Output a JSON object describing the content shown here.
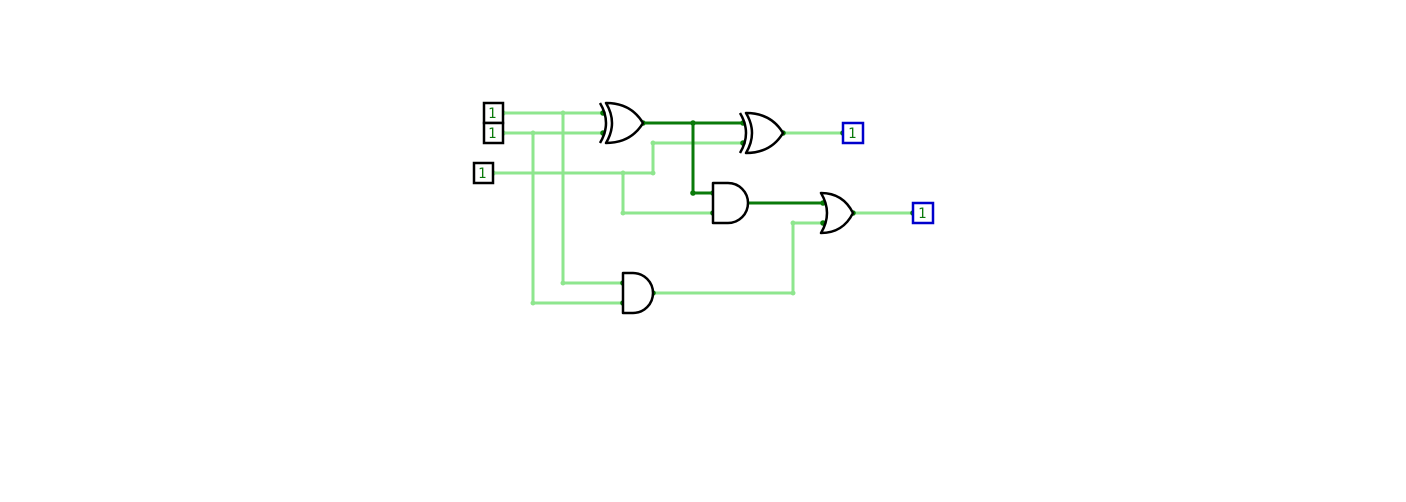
{
  "colors": {
    "wire_low": "#8ee68e",
    "wire_high": "#0a7a0a",
    "gate_stroke": "#000000",
    "input_border": "#000000",
    "output_border": "#0000cc",
    "value_text": "#0a7a0a"
  },
  "inputs": [
    {
      "value": "1"
    },
    {
      "value": "1"
    },
    {
      "value": "1"
    }
  ],
  "outputs": [
    {
      "value": "1"
    },
    {
      "value": "1"
    }
  ],
  "gates": [
    {
      "type": "xor"
    },
    {
      "type": "xor"
    },
    {
      "type": "and"
    },
    {
      "type": "or"
    },
    {
      "type": "and"
    }
  ]
}
